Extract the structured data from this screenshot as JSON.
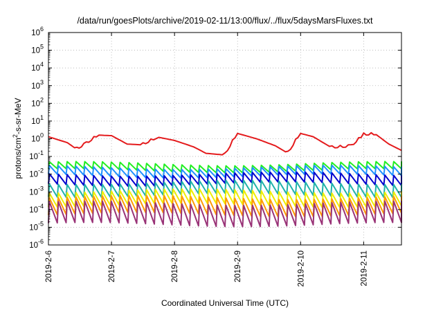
{
  "chart_data": {
    "type": "line",
    "title": "/data/run/goesPlots/archive/2019-02-11/13:00/flux/../flux/5daysMarsFluxes.txt",
    "xlabel": "Coordinated Universal Time (UTC)",
    "ylabel_base": "protons/cm",
    "ylabel_sup": "2",
    "ylabel_rest": "-s-sr-MeV",
    "y_scale": "log",
    "ylim": [
      1e-06,
      1000000.0
    ],
    "y_ticks": [
      {
        "base": "10",
        "exp": "-6",
        "value": 1e-06
      },
      {
        "base": "10",
        "exp": "-5",
        "value": 1e-05
      },
      {
        "base": "10",
        "exp": "-4",
        "value": 0.0001
      },
      {
        "base": "10",
        "exp": "-3",
        "value": 0.001
      },
      {
        "base": "10",
        "exp": "-2",
        "value": 0.01
      },
      {
        "base": "10",
        "exp": "-1",
        "value": 0.1
      },
      {
        "base": "10",
        "exp": "0",
        "value": 1
      },
      {
        "base": "10",
        "exp": "1",
        "value": 10
      },
      {
        "base": "10",
        "exp": "2",
        "value": 100
      },
      {
        "base": "10",
        "exp": "3",
        "value": 1000
      },
      {
        "base": "10",
        "exp": "4",
        "value": 10000
      },
      {
        "base": "10",
        "exp": "5",
        "value": 100000
      },
      {
        "base": "10",
        "exp": "6",
        "value": 1000000
      }
    ],
    "x_ticks": [
      "2019-2-6",
      "2019-2-7",
      "2019-2-8",
      "2019-2-9",
      "2019-2-10",
      "2019-2-11"
    ],
    "xlim_days": [
      0,
      5.6
    ],
    "grid": true,
    "series": [
      {
        "color": "#e41a1c",
        "base": 0.7,
        "amp": 1.25,
        "period": 0.14,
        "form": "slow",
        "x": [
          0,
          0.3,
          0.45,
          0.6,
          0.8,
          1.0,
          1.25,
          1.5,
          1.75,
          2.0,
          2.3,
          2.5,
          2.8,
          3.0,
          3.3,
          3.6,
          3.8,
          4.0,
          4.2,
          4.5,
          4.8,
          5.0,
          5.2,
          5.4,
          5.6
        ],
        "y": [
          1.3,
          0.6,
          0.25,
          0.5,
          1.6,
          1.5,
          0.5,
          0.45,
          1.2,
          0.8,
          0.35,
          0.15,
          0.12,
          2.0,
          1.0,
          0.4,
          0.15,
          2.0,
          1.3,
          0.3,
          0.35,
          1.6,
          1.7,
          0.5,
          0.22
        ]
      },
      {
        "color": "#22ee22",
        "base": 0.022,
        "amp": 0.25,
        "period": 0.14
      },
      {
        "color": "#1e90ff",
        "base": 0.012,
        "amp": 0.3,
        "period": 0.14
      },
      {
        "color": "#0000cd",
        "base": 0.0045,
        "amp": 0.35,
        "period": 0.14
      },
      {
        "color": "#20b2aa",
        "base": 0.0012,
        "amp": 0.45,
        "period": 0.14
      },
      {
        "color": "#eeee00",
        "base": 0.00035,
        "amp": 0.5,
        "period": 0.14
      },
      {
        "color": "#ff9900",
        "base": 0.00012,
        "amp": 0.6,
        "period": 0.14
      },
      {
        "color": "#993377",
        "base": 4e-05,
        "amp": 0.75,
        "period": 0.14
      }
    ]
  }
}
